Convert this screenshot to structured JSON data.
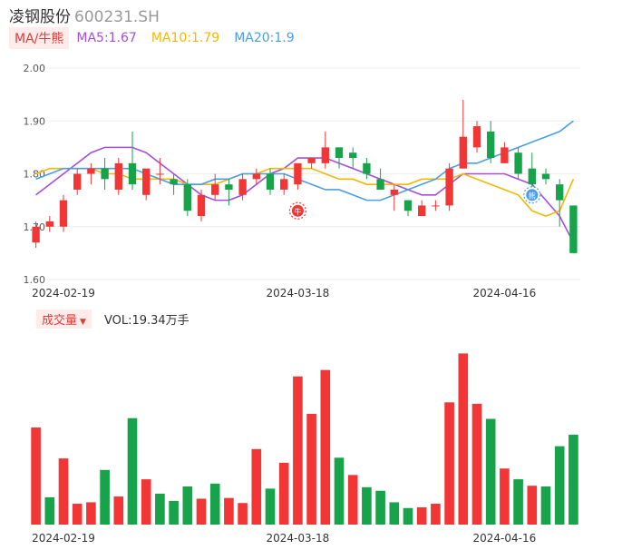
{
  "header": {
    "name": "凌钢股份",
    "code": "600231.SH"
  },
  "ma_legend": {
    "tag": "MA/牛熊",
    "items": [
      {
        "label": "MA5:1.67",
        "color": "#a64dde"
      },
      {
        "label": "MA10:1.79",
        "color": "#f5b800"
      },
      {
        "label": "MA20:1.9",
        "color": "#4a9ee8"
      }
    ]
  },
  "volume_legend": {
    "tag": "成交量",
    "text": "VOL:19.34万手"
  },
  "colors": {
    "up": "#f23636",
    "down": "#16a34a",
    "grid": "#eeeeee",
    "axis_text": "#555555"
  },
  "chart_data": [
    {
      "type": "candlestick",
      "ylim": [
        1.6,
        2.0
      ],
      "y_ticks": [
        "1.60",
        "1.70",
        "1.80",
        "1.90",
        "2.00"
      ],
      "x_tick_labels": [
        {
          "index": 2,
          "label": "2024-02-19"
        },
        {
          "index": 19,
          "label": "2024-03-18"
        },
        {
          "index": 34,
          "label": "2024-04-16"
        }
      ],
      "candles": [
        [
          1.67,
          1.7,
          1.71,
          1.66
        ],
        [
          1.7,
          1.71,
          1.72,
          1.69
        ],
        [
          1.7,
          1.75,
          1.76,
          1.69
        ],
        [
          1.77,
          1.8,
          1.81,
          1.76
        ],
        [
          1.8,
          1.81,
          1.82,
          1.78
        ],
        [
          1.81,
          1.79,
          1.83,
          1.77
        ],
        [
          1.77,
          1.82,
          1.83,
          1.76
        ],
        [
          1.82,
          1.78,
          1.88,
          1.77
        ],
        [
          1.76,
          1.81,
          1.81,
          1.75
        ],
        [
          1.8,
          1.8,
          1.83,
          1.78
        ],
        [
          1.79,
          1.78,
          1.8,
          1.76
        ],
        [
          1.78,
          1.73,
          1.79,
          1.72
        ],
        [
          1.72,
          1.76,
          1.77,
          1.71
        ],
        [
          1.76,
          1.78,
          1.8,
          1.75
        ],
        [
          1.78,
          1.77,
          1.79,
          1.74
        ],
        [
          1.76,
          1.79,
          1.8,
          1.75
        ],
        [
          1.79,
          1.8,
          1.81,
          1.78
        ],
        [
          1.8,
          1.77,
          1.81,
          1.76
        ],
        [
          1.77,
          1.79,
          1.8,
          1.76
        ],
        [
          1.78,
          1.82,
          1.82,
          1.77
        ],
        [
          1.82,
          1.83,
          1.83,
          1.81
        ],
        [
          1.82,
          1.85,
          1.88,
          1.81
        ],
        [
          1.85,
          1.83,
          1.85,
          1.81
        ],
        [
          1.84,
          1.83,
          1.85,
          1.81
        ],
        [
          1.82,
          1.8,
          1.83,
          1.79
        ],
        [
          1.79,
          1.77,
          1.81,
          1.77
        ],
        [
          1.76,
          1.77,
          1.78,
          1.73
        ],
        [
          1.75,
          1.73,
          1.75,
          1.72
        ],
        [
          1.72,
          1.74,
          1.75,
          1.72
        ],
        [
          1.74,
          1.74,
          1.75,
          1.73
        ],
        [
          1.74,
          1.81,
          1.82,
          1.73
        ],
        [
          1.81,
          1.87,
          1.94,
          1.81
        ],
        [
          1.85,
          1.89,
          1.9,
          1.84
        ],
        [
          1.88,
          1.83,
          1.9,
          1.82
        ],
        [
          1.82,
          1.85,
          1.86,
          1.82
        ],
        [
          1.84,
          1.8,
          1.85,
          1.79
        ],
        [
          1.81,
          1.78,
          1.84,
          1.77
        ],
        [
          1.8,
          1.79,
          1.81,
          1.78
        ],
        [
          1.78,
          1.75,
          1.79,
          1.7
        ],
        [
          1.74,
          1.65,
          1.74,
          1.65
        ]
      ],
      "ma": {
        "ma5": [
          1.76,
          1.78,
          1.8,
          1.82,
          1.84,
          1.85,
          1.85,
          1.85,
          1.84,
          1.82,
          1.8,
          1.78,
          1.76,
          1.75,
          1.75,
          1.76,
          1.78,
          1.8,
          1.81,
          1.83,
          1.83,
          1.83,
          1.82,
          1.81,
          1.8,
          1.79,
          1.78,
          1.77,
          1.76,
          1.76,
          1.78,
          1.8,
          1.8,
          1.8,
          1.8,
          1.79,
          1.78,
          1.75,
          1.72,
          1.67
        ],
        "ma10": [
          1.8,
          1.81,
          1.81,
          1.81,
          1.81,
          1.8,
          1.8,
          1.79,
          1.79,
          1.79,
          1.79,
          1.78,
          1.78,
          1.78,
          1.79,
          1.8,
          1.8,
          1.81,
          1.81,
          1.81,
          1.81,
          1.8,
          1.79,
          1.79,
          1.78,
          1.78,
          1.78,
          1.78,
          1.79,
          1.79,
          1.79,
          1.8,
          1.79,
          1.78,
          1.77,
          1.76,
          1.73,
          1.72,
          1.73,
          1.79
        ],
        "ma20": [
          1.79,
          1.8,
          1.81,
          1.81,
          1.81,
          1.81,
          1.81,
          1.81,
          1.8,
          1.79,
          1.78,
          1.78,
          1.78,
          1.79,
          1.79,
          1.8,
          1.8,
          1.8,
          1.8,
          1.79,
          1.78,
          1.77,
          1.77,
          1.76,
          1.75,
          1.75,
          1.76,
          1.77,
          1.78,
          1.79,
          1.81,
          1.82,
          1.82,
          1.83,
          1.84,
          1.85,
          1.86,
          1.87,
          1.88,
          1.9
        ]
      },
      "markers": [
        {
          "index": 19,
          "price": 1.73,
          "label": "牛",
          "color": "#f23636"
        },
        {
          "index": 36,
          "price": 1.76,
          "label": "熊",
          "color": "#4a9ee8"
        }
      ]
    },
    {
      "type": "bar",
      "title": "成交量",
      "values": [
        1.35,
        0.38,
        0.92,
        0.29,
        0.31,
        0.76,
        0.39,
        1.48,
        0.63,
        0.43,
        0.33,
        0.53,
        0.36,
        0.57,
        0.37,
        0.3,
        1.05,
        0.5,
        0.86,
        2.06,
        1.54,
        2.15,
        0.93,
        0.69,
        0.52,
        0.47,
        0.31,
        0.23,
        0.24,
        0.29,
        1.7,
        2.38,
        1.68,
        1.47,
        0.78,
        0.63,
        0.54,
        0.53,
        1.09,
        1.25
      ],
      "up": [
        true,
        false,
        true,
        true,
        true,
        false,
        true,
        false,
        true,
        false,
        false,
        false,
        true,
        false,
        true,
        true,
        true,
        false,
        true,
        true,
        true,
        true,
        false,
        true,
        false,
        false,
        false,
        false,
        true,
        true,
        true,
        true,
        true,
        false,
        true,
        false,
        true,
        false,
        false,
        false
      ]
    }
  ]
}
